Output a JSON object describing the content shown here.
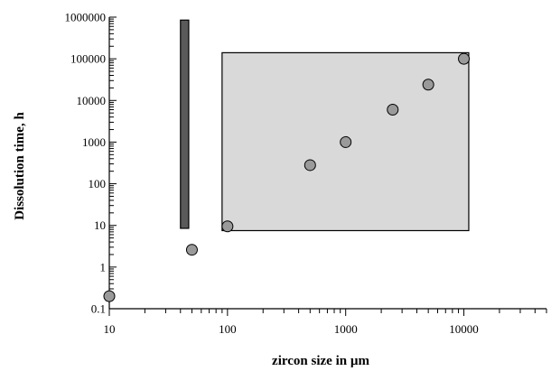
{
  "chart_data": {
    "type": "scatter",
    "title": "",
    "xlabel": "zircon size in µm",
    "ylabel": "Dissolution time, h",
    "x_scale": "log",
    "y_scale": "log",
    "xlim": [
      10,
      50000
    ],
    "ylim": [
      0.1,
      1000000
    ],
    "x_ticks": [
      "10",
      "100",
      "1000",
      "10000"
    ],
    "y_ticks": [
      "0.1",
      "1",
      "10",
      "100",
      "1000",
      "10000",
      "100000",
      "1000000"
    ],
    "grid": false,
    "legend": "none",
    "series": [
      {
        "x": [
          10,
          50,
          100,
          500,
          1000,
          2500,
          5000,
          10000
        ],
        "y": [
          0.2,
          2.6,
          9.5,
          280,
          1000,
          6000,
          24000,
          100000
        ]
      }
    ],
    "regions": [
      {
        "x": [
          40,
          47
        ],
        "y": [
          8.5,
          850000
        ],
        "color": "#5a5a5a"
      },
      {
        "x": [
          90,
          11000
        ],
        "y": [
          7.5,
          140000
        ],
        "color": "#d9d9d9"
      }
    ],
    "colors": {
      "marker_fill": "#9a9a9a",
      "marker_stroke": "#000000"
    }
  }
}
